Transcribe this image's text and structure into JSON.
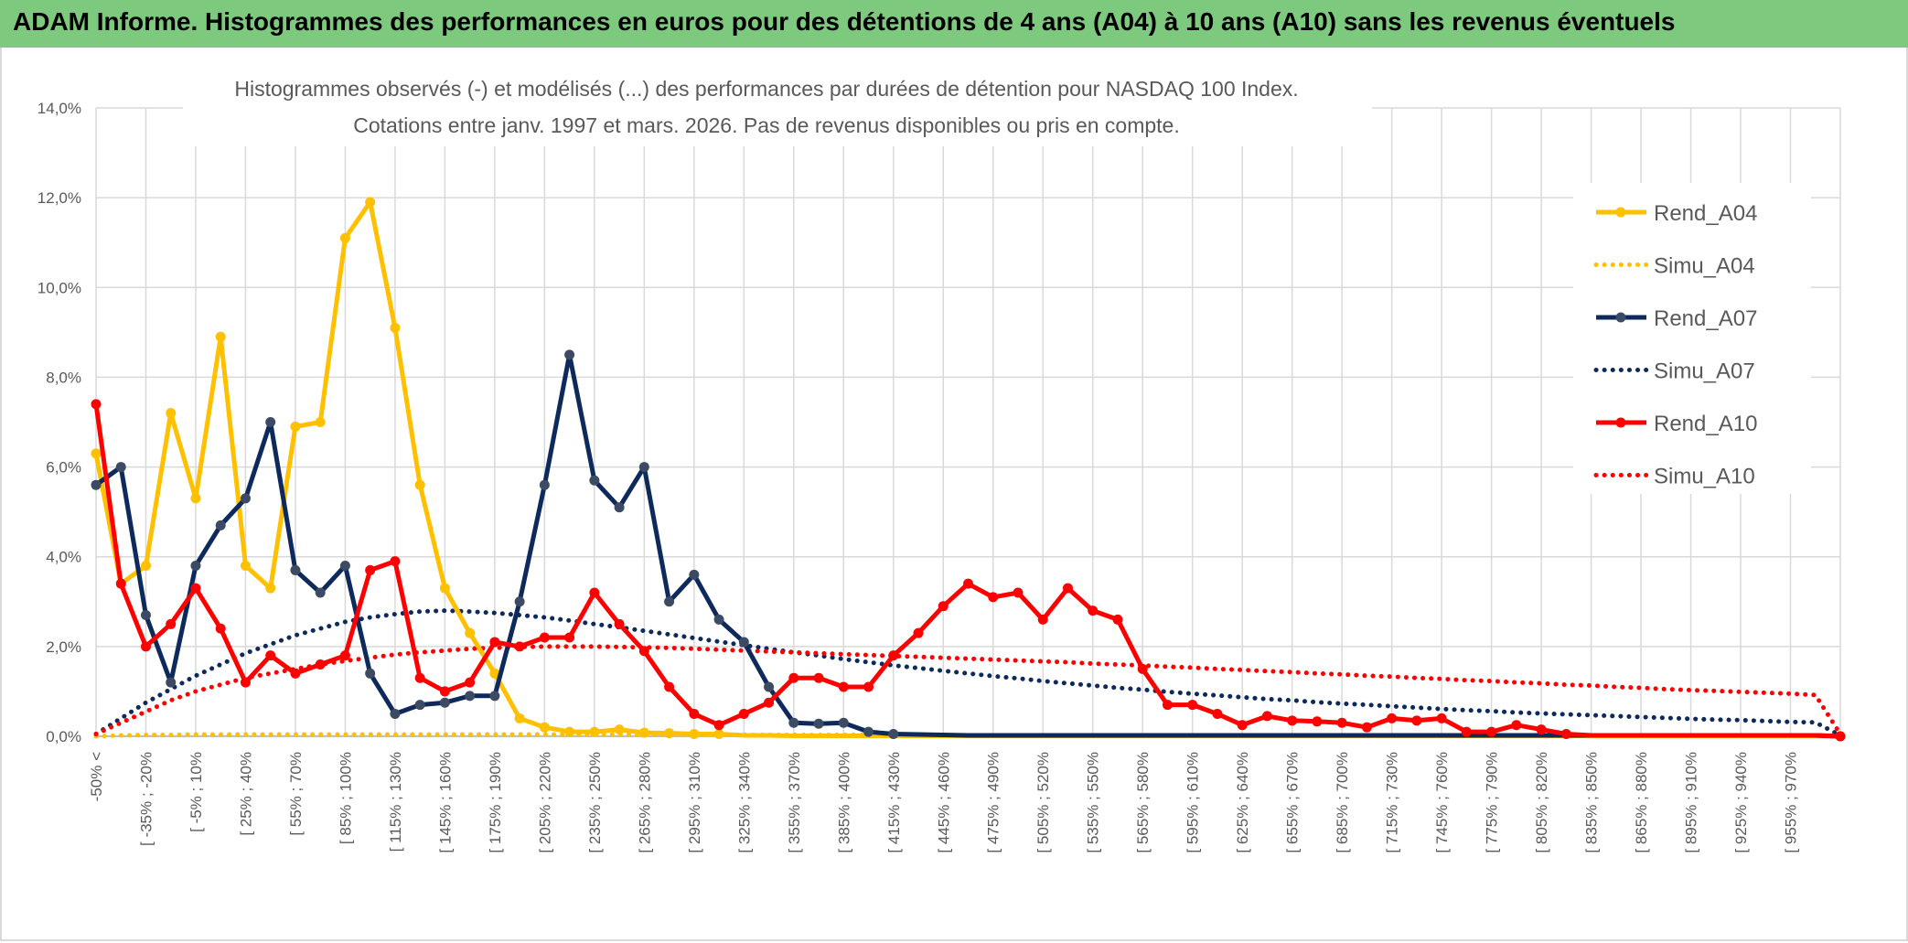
{
  "header": {
    "title": "ADAM Informe. Histogrammes des performances en euros pour des détentions de 4 ans (A04) à 10 ans (A10) sans les revenus éventuels"
  },
  "chart_data": {
    "type": "line",
    "title_line1": "Histogrammes observés (-) et modélisés (...) des performances par durées de détention pour NASDAQ 100 Index.",
    "title_line2": "Cotations entre janv. 1997 et mars. 2026. Pas de revenus disponibles ou pris en compte.",
    "ylim": [
      0,
      14
    ],
    "y_ticks": [
      "0,0%",
      "2,0%",
      "4,0%",
      "6,0%",
      "8,0%",
      "10,0%",
      "12,0%",
      "14,0%"
    ],
    "x_labels": [
      "-50% <",
      "[ -35% ; -20%",
      "[ -5% ; 10%",
      "[ 25% ; 40%",
      "[ 55% ; 70%",
      "[ 85% ; 100%",
      "[ 115% ; 130%",
      "[ 145% ; 160%",
      "[ 175% ; 190%",
      "[ 205% ; 220%",
      "[ 235% ; 250%",
      "[ 265% ; 280%",
      "[ 295% ; 310%",
      "[ 325% ; 340%",
      "[ 355% ; 370%",
      "[ 385% ; 400%",
      "[ 415% ; 430%",
      "[ 445% ; 460%",
      "[ 475% ; 490%",
      "[ 505% ; 520%",
      "[ 535% ; 550%",
      "[ 565% ; 580%",
      "[ 595% ; 610%",
      "[ 625% ; 640%",
      "[ 655% ; 670%",
      "[ 685% ; 700%",
      "[ 715% ; 730%",
      "[ 745% ; 760%",
      "[ 775% ; 790%",
      "[ 805% ; 820%",
      "[ 835% ; 850%",
      "[ 865% ; 880%",
      "[ 895% ; 910%",
      "[ 925% ; 940%",
      "[ 955% ; 970%"
    ],
    "series": [
      {
        "name": "Rend_A04",
        "style": "solid",
        "color": "#ffc000",
        "values": [
          6.3,
          3.4,
          3.8,
          7.2,
          5.3,
          8.9,
          3.8,
          3.3,
          6.9,
          7.0,
          11.1,
          11.9,
          9.1,
          5.6,
          3.3,
          2.3,
          1.4,
          0.4,
          0.2,
          0.1,
          0.1,
          0.15,
          0.08,
          0.07,
          0.05,
          0.05,
          0.02,
          0.02,
          0.01,
          0.01,
          0.01,
          0.01,
          0.01,
          0.01,
          0.01,
          0.01,
          0.01,
          0.01,
          0.01,
          0.01,
          0.01,
          0.01,
          0.01,
          0.01,
          0.01,
          0.01,
          0.01,
          0.01,
          0.01,
          0.01,
          0.01,
          0.01,
          0.01,
          0.01,
          0.01,
          0.01,
          0.01,
          0.01,
          0.01,
          0.01,
          0.01,
          0.01,
          0.01,
          0.01,
          0.01,
          0.01,
          0.01,
          0.01,
          0.01,
          0.01,
          0.0
        ]
      },
      {
        "name": "Simu_A04",
        "style": "dotted",
        "color": "#ffc000",
        "values": [
          0.0,
          0.02,
          0.03,
          0.03,
          0.04,
          0.04,
          0.04,
          0.04,
          0.04,
          0.04,
          0.04,
          0.04,
          0.04,
          0.04,
          0.04,
          0.04,
          0.04,
          0.04,
          0.04,
          0.04,
          0.04,
          0.04,
          0.04,
          0.04,
          0.03,
          0.03,
          0.03,
          0.03,
          0.03,
          0.03,
          0.03,
          0.03,
          0.02,
          0.02,
          0.02,
          0.02,
          0.02,
          0.02,
          0.02,
          0.02,
          0.02,
          0.02,
          0.02,
          0.02,
          0.02,
          0.02,
          0.02,
          0.02,
          0.02,
          0.02,
          0.02,
          0.02,
          0.02,
          0.02,
          0.02,
          0.02,
          0.02,
          0.02,
          0.02,
          0.02,
          0.02,
          0.02,
          0.02,
          0.02,
          0.02,
          0.02,
          0.02,
          0.02,
          0.02,
          0.02,
          0.0
        ]
      },
      {
        "name": "Rend_A07",
        "style": "solid",
        "color": "#0e2a5c",
        "values": [
          5.6,
          6.0,
          2.7,
          1.2,
          3.8,
          4.7,
          5.3,
          7.0,
          3.7,
          3.2,
          3.8,
          1.4,
          0.5,
          0.7,
          0.75,
          0.9,
          0.9,
          3.0,
          5.6,
          8.5,
          5.7,
          5.1,
          6.0,
          3.0,
          3.6,
          2.6,
          2.1,
          1.1,
          0.3,
          0.28,
          0.3,
          0.1,
          0.05,
          0.04,
          0.03,
          0.02,
          0.02,
          0.02,
          0.02,
          0.02,
          0.02,
          0.02,
          0.02,
          0.02,
          0.02,
          0.02,
          0.02,
          0.02,
          0.02,
          0.02,
          0.02,
          0.02,
          0.02,
          0.02,
          0.02,
          0.02,
          0.02,
          0.02,
          0.02,
          0.02,
          0.02,
          0.02,
          0.02,
          0.02,
          0.02,
          0.02,
          0.02,
          0.02,
          0.02,
          0.02,
          0.0
        ]
      },
      {
        "name": "Simu_A07",
        "style": "dotted",
        "color": "#0e2a5c",
        "values": [
          0.05,
          0.4,
          0.75,
          1.05,
          1.35,
          1.6,
          1.85,
          2.05,
          2.25,
          2.4,
          2.55,
          2.65,
          2.72,
          2.78,
          2.8,
          2.78,
          2.75,
          2.7,
          2.65,
          2.58,
          2.5,
          2.43,
          2.35,
          2.27,
          2.19,
          2.11,
          2.03,
          1.95,
          1.87,
          1.8,
          1.72,
          1.65,
          1.58,
          1.52,
          1.46,
          1.4,
          1.34,
          1.29,
          1.23,
          1.18,
          1.13,
          1.08,
          1.04,
          0.99,
          0.95,
          0.91,
          0.87,
          0.83,
          0.8,
          0.76,
          0.73,
          0.7,
          0.67,
          0.64,
          0.61,
          0.58,
          0.56,
          0.53,
          0.51,
          0.49,
          0.47,
          0.45,
          0.43,
          0.41,
          0.39,
          0.37,
          0.36,
          0.34,
          0.32,
          0.31,
          0.02
        ]
      },
      {
        "name": "Rend_A10",
        "style": "solid",
        "color": "#ff0000",
        "values": [
          7.4,
          3.4,
          2.0,
          2.5,
          3.3,
          2.4,
          1.2,
          1.8,
          1.4,
          1.6,
          1.8,
          3.7,
          3.9,
          1.3,
          1.0,
          1.2,
          2.1,
          2.0,
          2.2,
          2.2,
          3.2,
          2.5,
          1.9,
          1.1,
          0.5,
          0.25,
          0.5,
          0.75,
          1.3,
          1.3,
          1.1,
          1.1,
          1.8,
          2.3,
          2.9,
          3.4,
          3.1,
          3.2,
          2.6,
          3.3,
          2.8,
          2.6,
          1.5,
          0.7,
          0.7,
          0.5,
          0.25,
          0.45,
          0.35,
          0.33,
          0.3,
          0.2,
          0.4,
          0.35,
          0.4,
          0.1,
          0.1,
          0.25,
          0.15,
          0.05,
          0.02,
          0.02,
          0.02,
          0.02,
          0.02,
          0.02,
          0.02,
          0.02,
          0.02,
          0.02,
          0.0
        ]
      },
      {
        "name": "Simu_A10",
        "style": "dotted",
        "color": "#ff0000",
        "values": [
          0.05,
          0.3,
          0.55,
          0.8,
          1.0,
          1.15,
          1.3,
          1.4,
          1.5,
          1.6,
          1.68,
          1.75,
          1.82,
          1.87,
          1.91,
          1.95,
          1.97,
          1.99,
          2.0,
          2.0,
          2.0,
          1.99,
          1.98,
          1.97,
          1.95,
          1.93,
          1.91,
          1.89,
          1.87,
          1.85,
          1.83,
          1.81,
          1.79,
          1.77,
          1.75,
          1.73,
          1.71,
          1.69,
          1.67,
          1.65,
          1.62,
          1.6,
          1.58,
          1.55,
          1.53,
          1.5,
          1.48,
          1.45,
          1.43,
          1.4,
          1.38,
          1.35,
          1.33,
          1.3,
          1.28,
          1.25,
          1.23,
          1.2,
          1.18,
          1.15,
          1.13,
          1.1,
          1.08,
          1.05,
          1.03,
          1.01,
          0.99,
          0.97,
          0.95,
          0.92,
          0.05
        ]
      }
    ]
  }
}
